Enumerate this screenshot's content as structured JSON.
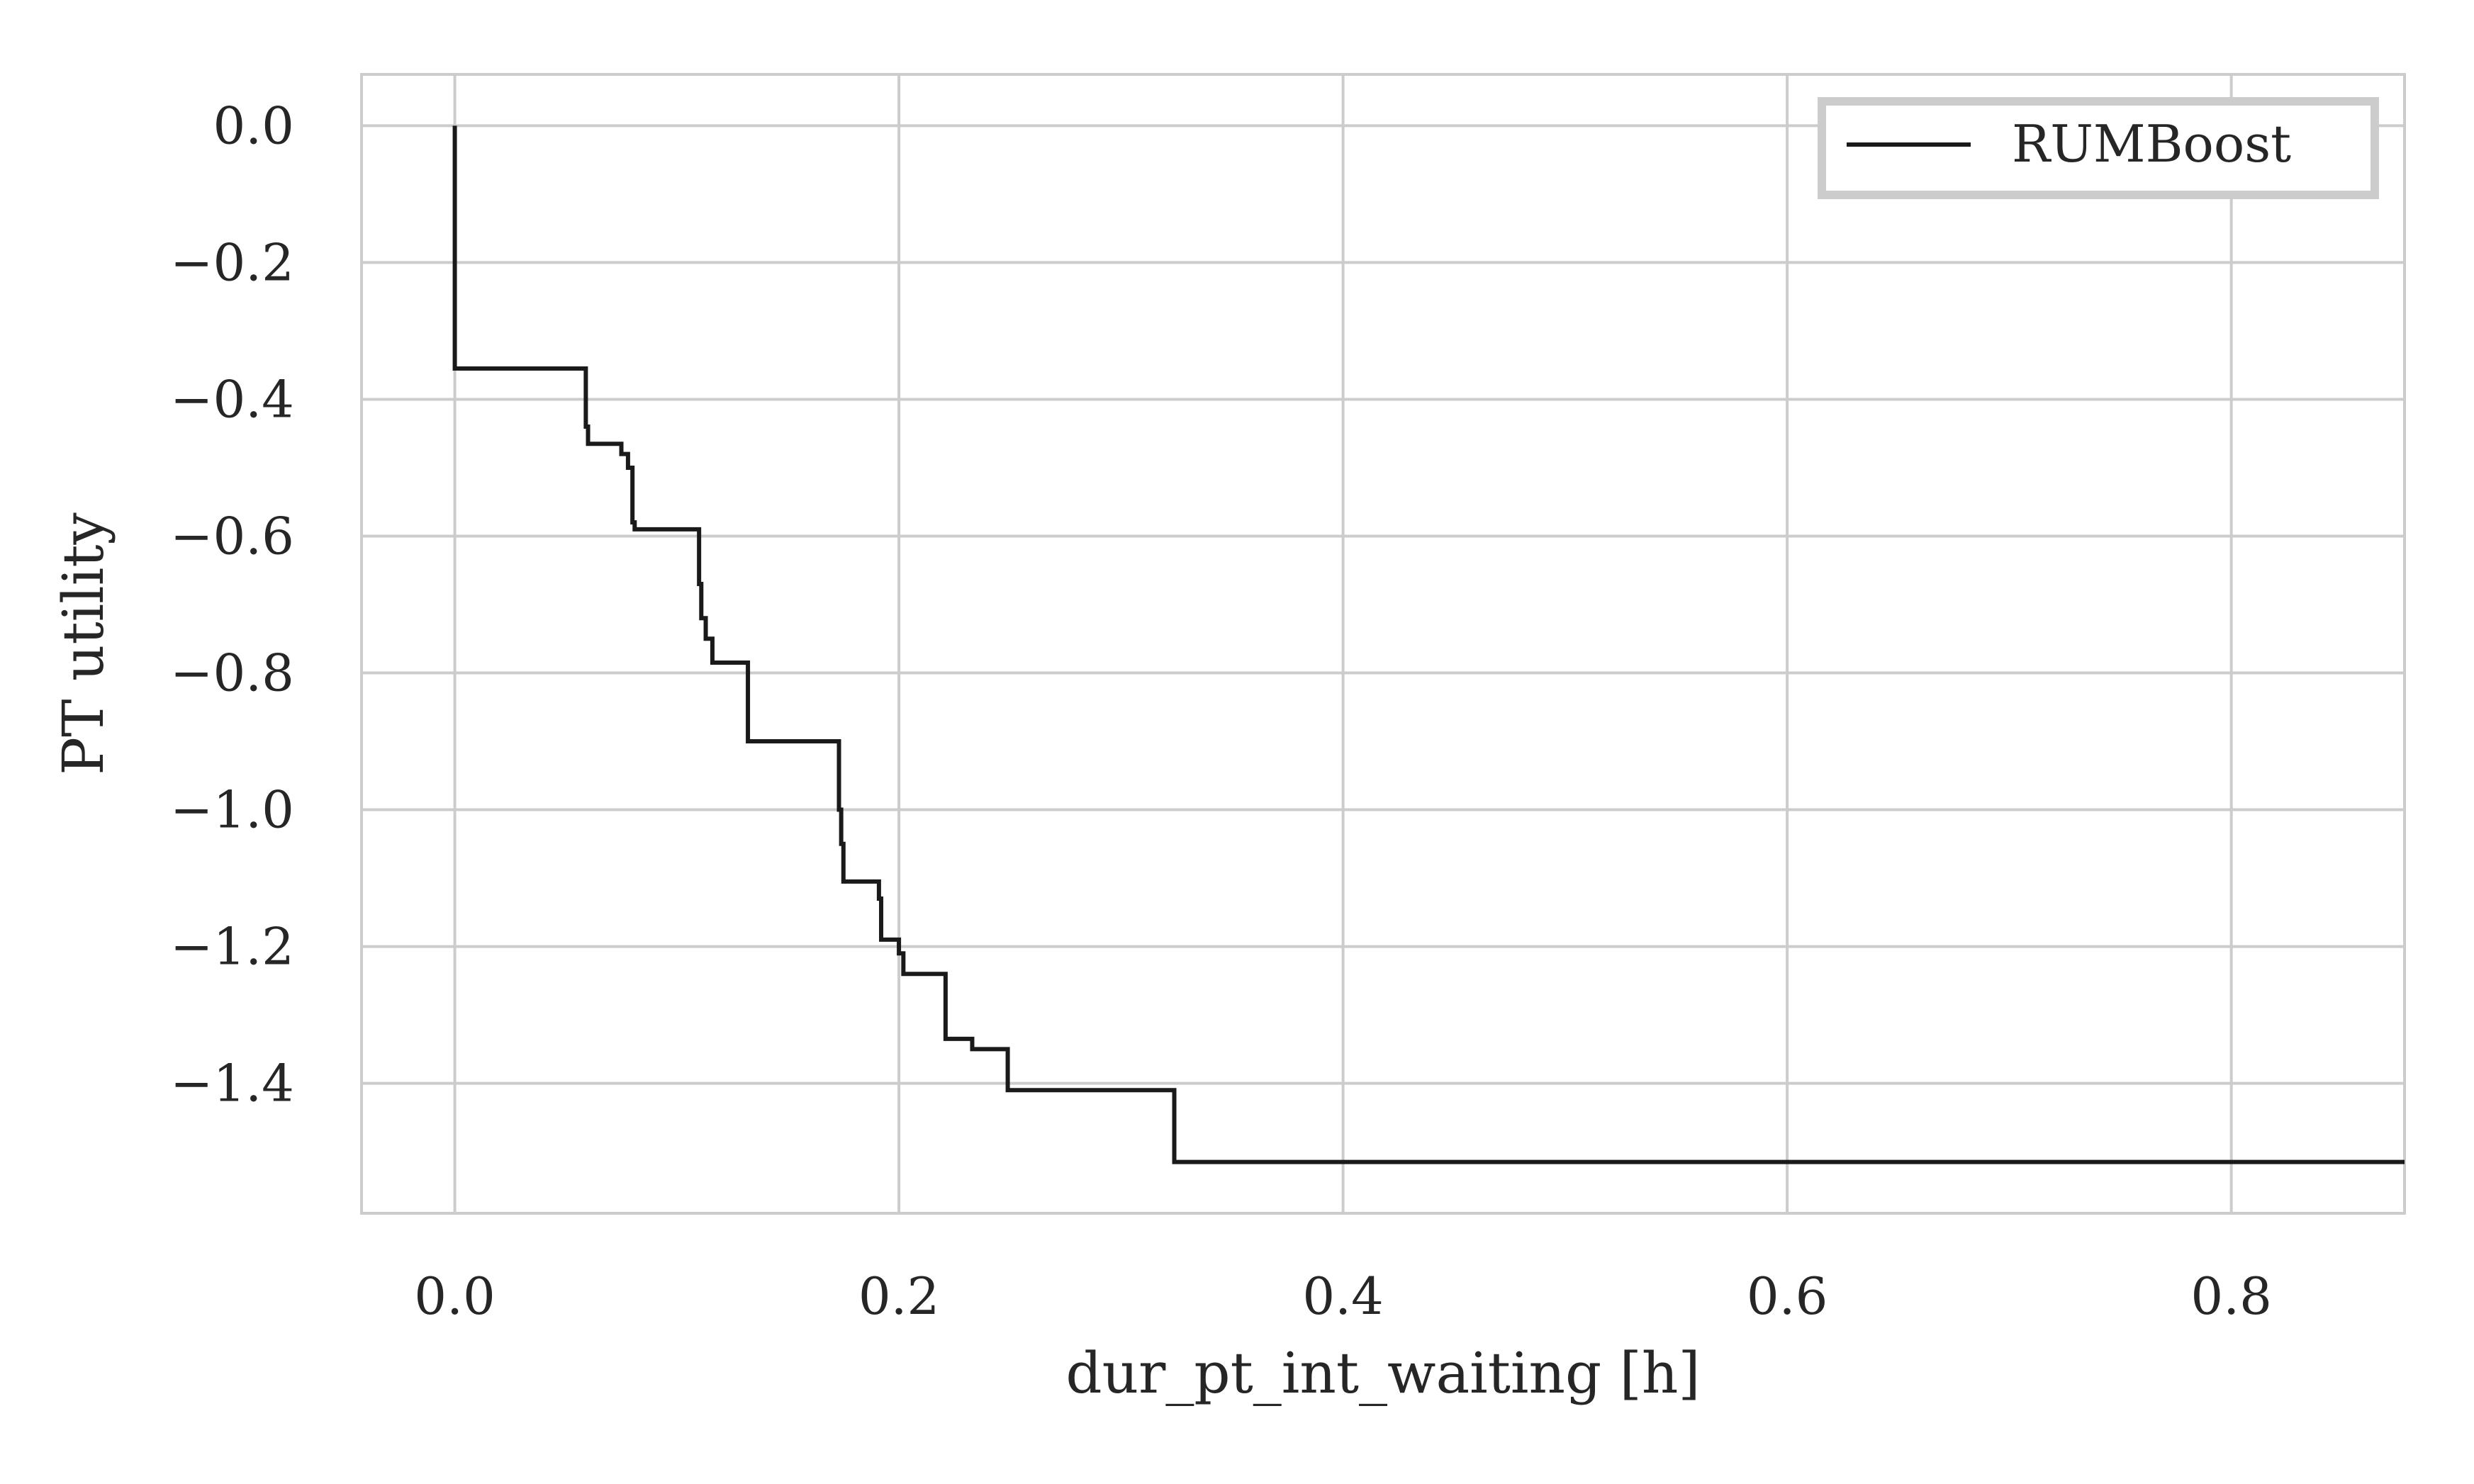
{
  "chart_data": {
    "type": "line",
    "drawstyle": "steps-post",
    "title": "",
    "xlabel": "dur_pt_int_waiting [h]",
    "ylabel": "PT utility",
    "xlim": [
      -0.042,
      0.878
    ],
    "ylim": [
      -1.59,
      0.075
    ],
    "x_ticks": [
      0.0,
      0.2,
      0.4,
      0.6,
      0.8
    ],
    "x_tick_labels": [
      "0.0",
      "0.2",
      "0.4",
      "0.6",
      "0.8"
    ],
    "y_ticks": [
      0.0,
      -0.2,
      -0.4,
      -0.6,
      -0.8,
      -1.0,
      -1.2,
      -1.4
    ],
    "y_tick_labels": [
      "0.0",
      "−0.2",
      "−0.4",
      "−0.6",
      "−0.8",
      "−1.0",
      "−1.2",
      "−1.4"
    ],
    "grid": true,
    "legend_position": "top-right",
    "colors": {
      "line": "#1a1a1a",
      "grid": "#cccccc",
      "spine": "#cccccc",
      "text": "#262626"
    },
    "series": [
      {
        "name": "RUMBoost",
        "x": [
          0.0,
          0.0,
          0.059,
          0.059,
          0.06,
          0.06,
          0.075,
          0.075,
          0.078,
          0.078,
          0.08,
          0.08,
          0.081,
          0.081,
          0.11,
          0.11,
          0.111,
          0.111,
          0.113,
          0.113,
          0.116,
          0.116,
          0.132,
          0.132,
          0.173,
          0.173,
          0.174,
          0.174,
          0.175,
          0.175,
          0.191,
          0.191,
          0.192,
          0.192,
          0.2,
          0.2,
          0.202,
          0.202,
          0.221,
          0.221,
          0.233,
          0.233,
          0.249,
          0.249,
          0.324,
          0.324,
          0.878
        ],
        "y": [
          0.0,
          -0.355,
          -0.355,
          -0.44,
          -0.44,
          -0.465,
          -0.465,
          -0.48,
          -0.48,
          -0.5,
          -0.5,
          -0.58,
          -0.58,
          -0.59,
          -0.59,
          -0.67,
          -0.67,
          -0.72,
          -0.72,
          -0.75,
          -0.75,
          -0.785,
          -0.785,
          -0.9,
          -0.9,
          -1.0,
          -1.0,
          -1.05,
          -1.05,
          -1.105,
          -1.105,
          -1.13,
          -1.13,
          -1.19,
          -1.19,
          -1.21,
          -1.21,
          -1.24,
          -1.24,
          -1.335,
          -1.335,
          -1.35,
          -1.35,
          -1.41,
          -1.41,
          -1.515,
          -1.515
        ]
      }
    ]
  }
}
